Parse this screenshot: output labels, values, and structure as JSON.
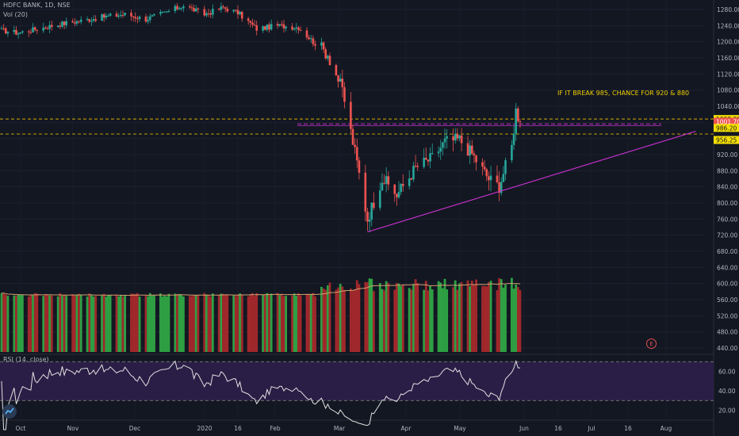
{
  "header": {
    "title": "HDFC BANK, 1D, NSE",
    "volume_label": "Vol (20)",
    "rsi_label": "RSI (14, close)"
  },
  "annotation": "IF IT BREAK 985, CHANCE FOR 920 & 880",
  "earnings_marker": "E",
  "colors": {
    "background": "#131722",
    "up": "#26a69a",
    "down": "#ef5350",
    "vol_up": "#2ea043",
    "vol_down": "#a0282b",
    "trendline": "#c030c8",
    "level": "#d4b000",
    "rsi_band": "#2a1e46",
    "rsi_line": "#e0e0e0",
    "annotation": "#f0d000",
    "volume_ma": "#d4a070"
  },
  "chart_data": {
    "type": "candlestick",
    "symbol": "HDFC BANK",
    "interval": "1D",
    "exchange": "NSE",
    "price_axis": {
      "ticks": [
        1280,
        1240,
        1200,
        1160,
        1120,
        1080,
        1040,
        1000,
        960,
        920,
        880,
        840,
        800,
        760,
        720,
        680,
        640,
        600,
        560,
        520,
        480,
        440
      ],
      "range": [
        440,
        1300
      ]
    },
    "rsi_axis": {
      "ticks": [
        60,
        40,
        20
      ],
      "range": [
        10,
        80
      ],
      "band": [
        30,
        70
      ]
    },
    "time_axis": [
      "Oct",
      "Nov",
      "Dec",
      "2020",
      "16",
      "Feb",
      "Mar",
      "Apr",
      "May",
      "Jun",
      "16",
      "Jul",
      "16",
      "Aug"
    ],
    "price_labels": [
      {
        "text": "1008.30",
        "value": 1008.3,
        "style": "level"
      },
      {
        "text": "1001.70",
        "value": 1001.7,
        "style": "last"
      },
      {
        "text": "986.20",
        "value": 986.2,
        "style": "level"
      },
      {
        "text": "956.25",
        "value": 956.25,
        "style": "level"
      }
    ],
    "horizontal_levels": [
      1008.3,
      971
    ],
    "resistance_line": 996,
    "trendline": {
      "from": [
        "2020-03-24",
        728
      ],
      "to": [
        "2020-08-28",
        978
      ]
    },
    "anchors": [
      [
        "2019-10-01",
        1228
      ],
      [
        "2019-10-09",
        1222
      ],
      [
        "2019-10-18",
        1232
      ],
      [
        "2019-10-29",
        1244
      ],
      [
        "2019-11-08",
        1252
      ],
      [
        "2019-11-19",
        1262
      ],
      [
        "2019-11-29",
        1268
      ],
      [
        "2019-12-09",
        1256
      ],
      [
        "2019-12-18",
        1272
      ],
      [
        "2019-12-27",
        1290
      ],
      [
        "2020-01-06",
        1268
      ],
      [
        "2020-01-15",
        1285
      ],
      [
        "2020-01-22",
        1272
      ],
      [
        "2020-01-31",
        1232
      ],
      [
        "2020-02-10",
        1240
      ],
      [
        "2020-02-20",
        1236
      ],
      [
        "2020-02-27",
        1200
      ],
      [
        "2020-03-05",
        1170
      ],
      [
        "2020-03-12",
        1080
      ],
      [
        "2020-03-19",
        900
      ],
      [
        "2020-03-24",
        760
      ],
      [
        "2020-03-31",
        862
      ],
      [
        "2020-04-07",
        820
      ],
      [
        "2020-04-16",
        888
      ],
      [
        "2020-04-24",
        912
      ],
      [
        "2020-04-30",
        952
      ],
      [
        "2020-05-07",
        958
      ],
      [
        "2020-05-13",
        922
      ],
      [
        "2020-05-21",
        860
      ],
      [
        "2020-05-26",
        842
      ],
      [
        "2020-06-01",
        940
      ],
      [
        "2020-06-03",
        1030
      ],
      [
        "2020-06-05",
        1001.7
      ]
    ],
    "volume": {
      "ma_period": 20,
      "scale_max": 600
    },
    "rsi": {
      "period": 14,
      "source": "close",
      "last": 62
    }
  }
}
